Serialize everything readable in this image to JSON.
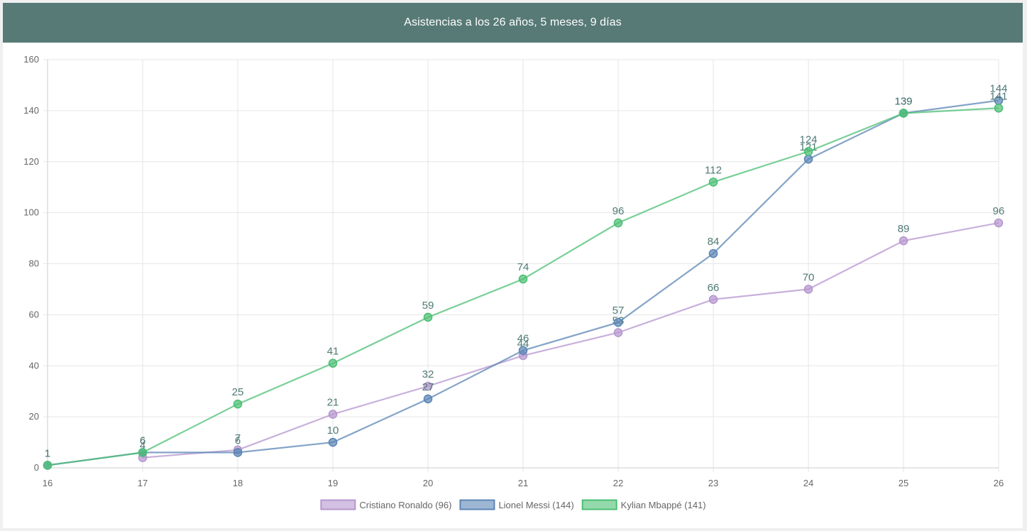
{
  "header": {
    "title": "Asistencias a los 26 años, 5 meses, 9 días"
  },
  "colors": {
    "header_bg": "#577a76",
    "grid": "#e6e6e6",
    "data_label": "#4f7a74"
  },
  "chart_data": {
    "type": "line",
    "title": "Asistencias a los 26 años, 5 meses, 9 días",
    "x": [
      16,
      17,
      18,
      19,
      20,
      21,
      22,
      23,
      24,
      25,
      26
    ],
    "xlim": [
      16,
      26
    ],
    "ylim": [
      0,
      160
    ],
    "yticks": [
      0,
      20,
      40,
      60,
      80,
      100,
      120,
      140,
      160
    ],
    "grid": true,
    "legend_position": "bottom",
    "series": [
      {
        "name": "Cristiano Ronaldo (96)",
        "color": "#b596cf",
        "x": [
          17,
          18,
          19,
          20,
          21,
          22,
          23,
          24,
          25,
          26
        ],
        "values": [
          4,
          7,
          21,
          32,
          44,
          53,
          66,
          70,
          89,
          96
        ]
      },
      {
        "name": "Lionel Messi (144)",
        "color": "#5b86b5",
        "x": [
          16,
          17,
          18,
          19,
          20,
          21,
          22,
          23,
          24,
          25,
          26
        ],
        "values": [
          1,
          6,
          6,
          10,
          27,
          46,
          57,
          84,
          121,
          139,
          144
        ]
      },
      {
        "name": "Kylian Mbappé (141)",
        "color": "#4cbf74",
        "x": [
          16,
          17,
          18,
          19,
          20,
          21,
          22,
          23,
          24,
          25,
          26
        ],
        "values": [
          1,
          6,
          25,
          41,
          59,
          74,
          96,
          112,
          124,
          139,
          141
        ]
      }
    ]
  }
}
